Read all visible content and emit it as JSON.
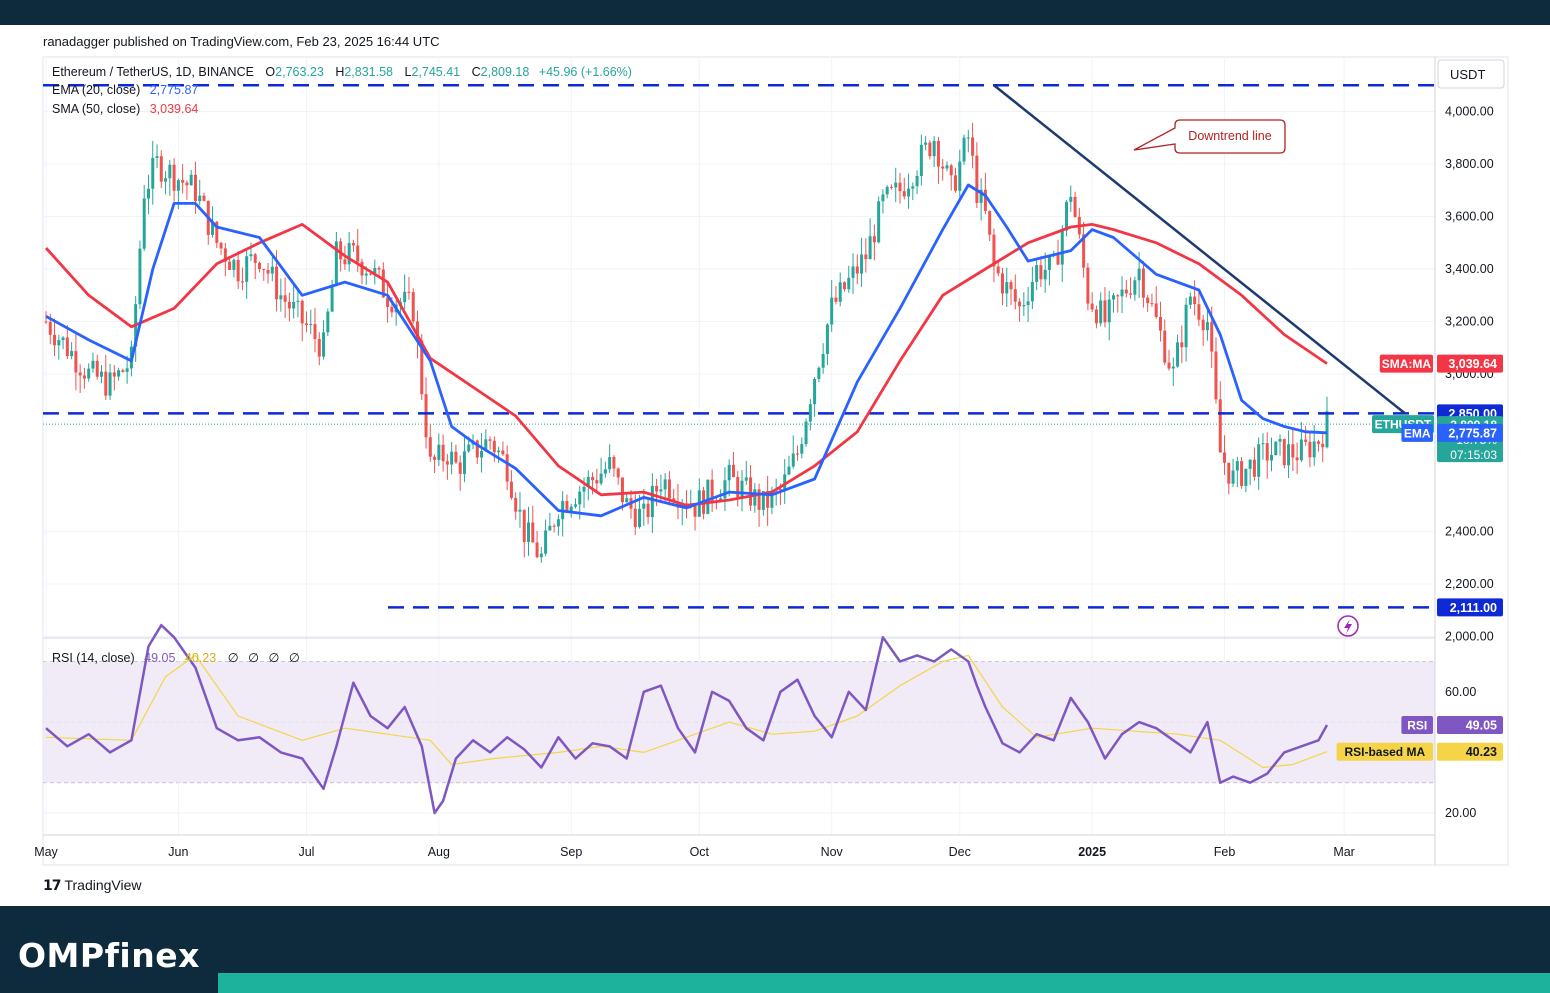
{
  "header": {
    "published": "ranadagger published on TradingView.com, Feb 23, 2025 16:44 UTC",
    "symbol": "Ethereum / TetherUS, 1D, BINANCE",
    "open_label": "O",
    "open": "2,763.23",
    "high_label": "H",
    "high": "2,831.58",
    "low_label": "L",
    "low": "2,745.41",
    "close_label": "C",
    "close": "2,809.18",
    "change": "+45.96 (+1.66%)",
    "ema_label": "EMA (20, close)",
    "ema_value": "2,775.87",
    "sma_label": "SMA (50, close)",
    "sma_value": "3,039.64",
    "currency": "USDT"
  },
  "footer": {
    "tradingview": "TradingView",
    "tv_mark": "17",
    "brand": "OMPfinex"
  },
  "colors": {
    "up": "#26a69a",
    "down": "#ef5350",
    "ema": "#2962ff",
    "sma": "#f23645",
    "rsi": "#7e57c2",
    "rsi_ma": "#f5d547",
    "level": "#0d2ad6",
    "trendline": "#1e3a6e",
    "brand_bg": "#0e2a3d",
    "brand_accent": "#1cb39a"
  },
  "chart_data": [
    {
      "type": "line",
      "name": "ETHUSDT daily price",
      "ylim": [
        2000,
        4100
      ],
      "y_ticks": [
        "4,000.00",
        "3,800.00",
        "3,600.00",
        "3,400.00",
        "3,200.00",
        "3,000.00",
        "2,400.00",
        "2,200.00",
        "2,000.00"
      ],
      "y_tick_values": [
        4000,
        3800,
        3600,
        3400,
        3200,
        3000,
        2400,
        2200,
        2000
      ],
      "x_ticks": [
        "May",
        "Jun",
        "Jul",
        "Aug",
        "Sep",
        "Oct",
        "Nov",
        "Dec",
        "2025",
        "Feb",
        "Mar"
      ],
      "x_tick_days": [
        0,
        31,
        61,
        92,
        123,
        153,
        184,
        214,
        245,
        276,
        304
      ],
      "x_start": "2024-04-27",
      "x_end": "2025-02-23",
      "series": [
        {
          "name": "Close",
          "x": [
            0,
            5,
            10,
            15,
            20,
            23,
            26,
            28,
            35,
            40,
            45,
            50,
            55,
            60,
            65,
            68,
            72,
            76,
            80,
            86,
            90,
            94,
            96,
            100,
            104,
            108,
            112,
            116,
            120,
            124,
            128,
            132,
            136,
            140,
            144,
            148,
            152,
            156,
            160,
            164,
            168,
            172,
            176,
            180,
            184,
            188,
            192,
            196,
            200,
            204,
            208,
            212,
            216,
            218,
            220,
            222,
            224,
            228,
            232,
            236,
            240,
            244,
            248,
            252,
            256,
            260,
            264,
            268,
            272,
            275,
            278,
            282,
            286,
            290,
            294,
            298,
            300
          ],
          "values": [
            3200,
            3100,
            3000,
            2960,
            3050,
            3700,
            3800,
            3780,
            3700,
            3500,
            3400,
            3450,
            3300,
            3200,
            3100,
            3450,
            3450,
            3400,
            3300,
            3250,
            2650,
            2700,
            2650,
            2700,
            2750,
            2650,
            2400,
            2300,
            2500,
            2550,
            2600,
            2650,
            2500,
            2450,
            2600,
            2550,
            2500,
            2550,
            2600,
            2550,
            2500,
            2550,
            2700,
            3000,
            3250,
            3350,
            3450,
            3650,
            3700,
            3800,
            3900,
            3700,
            3900,
            3700,
            3600,
            3400,
            3350,
            3250,
            3400,
            3400,
            3700,
            3300,
            3200,
            3300,
            3400,
            3200,
            3000,
            3300,
            3200,
            2700,
            2600,
            2650,
            2700,
            2700,
            2700,
            2750,
            2809.18
          ]
        },
        {
          "name": "EMA (20, close)",
          "x": [
            0,
            10,
            20,
            25,
            30,
            35,
            40,
            50,
            60,
            70,
            80,
            90,
            95,
            100,
            110,
            120,
            130,
            140,
            150,
            160,
            170,
            180,
            190,
            200,
            210,
            216,
            220,
            225,
            230,
            240,
            245,
            250,
            260,
            270,
            275,
            280,
            285,
            290,
            295,
            300
          ],
          "values": [
            3220,
            3130,
            3050,
            3400,
            3650,
            3650,
            3560,
            3520,
            3300,
            3350,
            3300,
            3050,
            2800,
            2740,
            2640,
            2480,
            2460,
            2530,
            2490,
            2550,
            2540,
            2600,
            2970,
            3250,
            3550,
            3720,
            3680,
            3560,
            3430,
            3470,
            3550,
            3520,
            3380,
            3320,
            3150,
            2900,
            2830,
            2800,
            2780,
            2775.87
          ]
        },
        {
          "name": "SMA (50, close)",
          "x": [
            0,
            10,
            20,
            30,
            40,
            50,
            60,
            70,
            80,
            90,
            100,
            110,
            120,
            130,
            140,
            150,
            160,
            170,
            180,
            190,
            200,
            210,
            220,
            230,
            240,
            245,
            250,
            260,
            270,
            280,
            290,
            300
          ],
          "values": [
            3480,
            3300,
            3180,
            3250,
            3420,
            3500,
            3570,
            3450,
            3350,
            3060,
            2950,
            2840,
            2650,
            2540,
            2550,
            2500,
            2520,
            2550,
            2650,
            2780,
            3050,
            3300,
            3400,
            3500,
            3560,
            3570,
            3550,
            3500,
            3420,
            3300,
            3150,
            3039.64
          ]
        }
      ],
      "levels": [
        {
          "name": "resistance",
          "value": 4100
        },
        {
          "name": "support-mid",
          "value": 2850,
          "label": "2,850.00"
        },
        {
          "name": "support-low",
          "value": 2111,
          "label": "2,111.00"
        }
      ],
      "trendline": {
        "x": [
          222,
          300
        ],
        "values": [
          4100,
          2850
        ]
      },
      "annotation": "Downtrend line",
      "price_tags": [
        {
          "name": "sma",
          "tag": "SMA:MA",
          "value": 3039.64,
          "text": "3,039.64"
        },
        {
          "name": "resistance",
          "value": 2850,
          "text": "2,850.00"
        },
        {
          "name": "last",
          "tag": "ETHUSDT",
          "value": 2809.18,
          "text": "2,809.18",
          "sub1": "−10.75%",
          "sub2": "07:15:03"
        },
        {
          "name": "ema",
          "tag": "EMA",
          "value": 2775.87,
          "text": "2,775.87"
        },
        {
          "name": "support",
          "value": 2111,
          "text": "2,111.00"
        }
      ]
    },
    {
      "type": "line",
      "name": "RSI (14, close)",
      "title": "RSI (14, close)",
      "legend_values": [
        "49.05",
        "40.23"
      ],
      "legend_placeholders": [
        "∅",
        "∅",
        "∅",
        "∅"
      ],
      "ylim": [
        10,
        90
      ],
      "y_ticks": [
        "60.00",
        "20.00"
      ],
      "y_tick_values": [
        60,
        20
      ],
      "band": [
        30,
        70
      ],
      "mid": 50,
      "series": [
        {
          "name": "RSI",
          "x": [
            0,
            5,
            10,
            15,
            20,
            24,
            27,
            30,
            35,
            40,
            45,
            50,
            55,
            60,
            65,
            68,
            72,
            76,
            80,
            84,
            88,
            91,
            93,
            96,
            100,
            104,
            108,
            112,
            116,
            120,
            124,
            128,
            132,
            136,
            140,
            144,
            148,
            152,
            156,
            160,
            164,
            168,
            172,
            176,
            180,
            184,
            188,
            192,
            196,
            200,
            204,
            208,
            212,
            216,
            218,
            220,
            224,
            228,
            232,
            236,
            240,
            244,
            248,
            252,
            256,
            260,
            264,
            268,
            272,
            275,
            278,
            282,
            286,
            290,
            294,
            298,
            300
          ],
          "values": [
            48,
            42,
            46,
            40,
            44,
            75,
            82,
            78,
            68,
            48,
            44,
            45,
            40,
            38,
            28,
            42,
            63,
            52,
            48,
            55,
            42,
            20,
            24,
            38,
            44,
            40,
            45,
            41,
            35,
            45,
            38,
            43,
            42,
            38,
            60,
            62,
            48,
            40,
            60,
            57,
            48,
            44,
            60,
            64,
            52,
            45,
            60,
            54,
            78,
            70,
            72,
            70,
            74,
            70,
            62,
            55,
            43,
            40,
            46,
            44,
            58,
            50,
            38,
            46,
            50,
            48,
            44,
            40,
            50,
            30,
            32,
            30,
            33,
            40,
            42,
            44,
            49.05
          ]
        },
        {
          "name": "RSI-based MA",
          "x": [
            0,
            20,
            28,
            35,
            45,
            60,
            70,
            80,
            90,
            95,
            105,
            120,
            130,
            140,
            150,
            160,
            170,
            180,
            190,
            200,
            210,
            216,
            224,
            232,
            245,
            255,
            265,
            275,
            285,
            292,
            300
          ],
          "values": [
            45,
            44,
            65,
            72,
            52,
            44,
            48,
            46,
            44,
            36,
            38,
            40,
            42,
            40,
            45,
            50,
            46,
            47,
            52,
            62,
            70,
            72,
            55,
            45,
            48,
            47,
            46,
            44,
            35,
            36,
            40.23
          ]
        }
      ],
      "price_tags": [
        {
          "name": "rsi",
          "tag": "RSI",
          "value": 49.05,
          "text": "49.05"
        },
        {
          "name": "rsi-ma",
          "tag": "RSI-based MA",
          "value": 40.23,
          "text": "40.23"
        }
      ]
    }
  ]
}
